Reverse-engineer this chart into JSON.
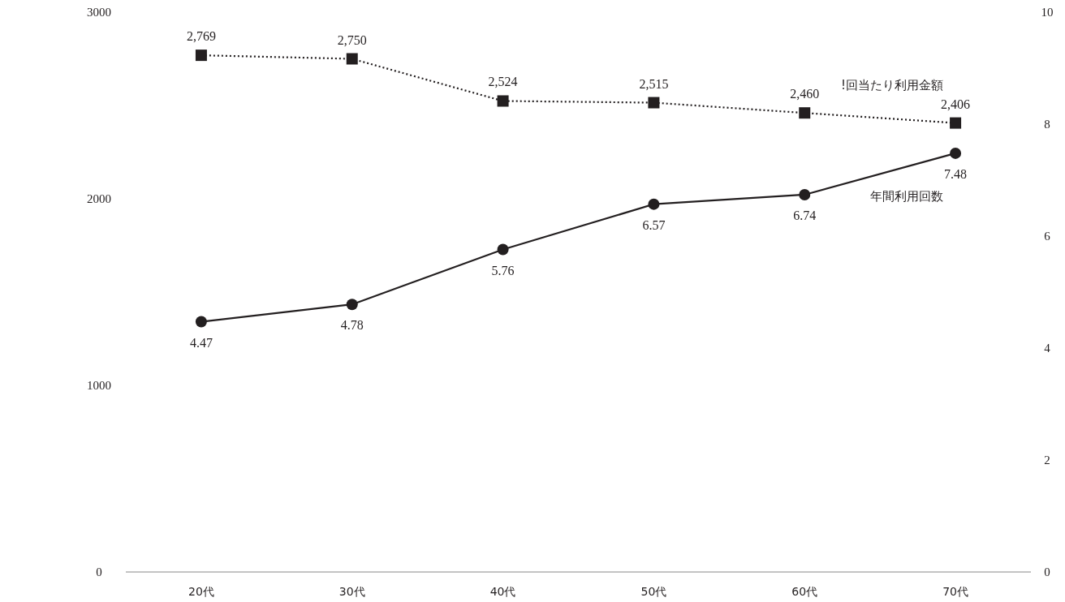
{
  "chart_data": {
    "type": "line",
    "categories": [
      "20代",
      "30代",
      "40代",
      "50代",
      "60代",
      "70代"
    ],
    "series": [
      {
        "name": "!回当たり利用金額",
        "color": "#231f20",
        "values": [
          2769,
          2750,
          2524,
          2515,
          2460,
          2406
        ],
        "marker": "square",
        "line_style": "dotted",
        "value_labels": [
          "2,769",
          "2,750",
          "2,524",
          "2,515",
          "2,460",
          "2,406"
        ]
      },
      {
        "name": "年間利用回数",
        "color": "#231f20",
        "values": [
          4.47,
          4.78,
          5.76,
          6.57,
          6.74,
          7.48
        ],
        "axis": "y2",
        "marker": "circle",
        "line_style": "solid"
      }
    ],
    "ylim": [
      0,
      3000
    ],
    "yticks": [
      0,
      1000,
      2000,
      3000
    ],
    "y2lim": [
      0,
      10
    ],
    "y2ticks": [
      0,
      2,
      4,
      6,
      8,
      10
    ],
    "data_labels": true,
    "grid": false
  }
}
